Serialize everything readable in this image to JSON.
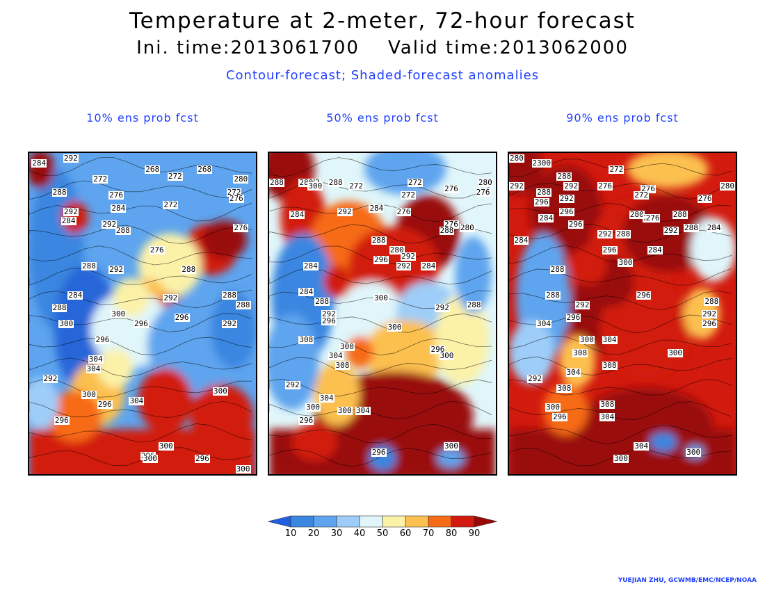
{
  "header": {
    "title": "Temperature at 2-meter, 72-hour forecast",
    "times": "Ini. time:2013061700    Valid time:2013062000",
    "subtitle": "Contour-forecast; Shaded-forecast anomalies"
  },
  "palette": [
    "#2566d8",
    "#3a86e0",
    "#5ea4ee",
    "#9dcdf8",
    "#e0f6fa",
    "#fbf2a8",
    "#fcc050",
    "#f76a18",
    "#d21a0e",
    "#9a0707"
  ],
  "panels": [
    {
      "title": "10% ens prob fcst",
      "base": 2,
      "blobs": [
        [
          0.55,
          0.05,
          0.2,
          0.08,
          2
        ],
        [
          0.12,
          0.3,
          0.12,
          0.25,
          1
        ],
        [
          0.25,
          0.55,
          0.14,
          0.2,
          0
        ],
        [
          0.8,
          0.3,
          0.12,
          0.08,
          8
        ],
        [
          0.86,
          0.27,
          0.1,
          0.06,
          9
        ],
        [
          0.62,
          0.35,
          0.14,
          0.1,
          5
        ],
        [
          0.52,
          0.47,
          0.1,
          0.08,
          6
        ],
        [
          0.62,
          0.5,
          0.08,
          0.06,
          8
        ],
        [
          0.45,
          0.55,
          0.18,
          0.12,
          4
        ],
        [
          0.72,
          0.6,
          0.2,
          0.15,
          2
        ],
        [
          0.6,
          0.77,
          0.12,
          0.1,
          8
        ],
        [
          0.85,
          0.82,
          0.14,
          0.1,
          8
        ],
        [
          0.3,
          0.75,
          0.12,
          0.1,
          6
        ],
        [
          0.2,
          0.82,
          0.12,
          0.08,
          7
        ],
        [
          0.05,
          0.05,
          0.06,
          0.06,
          9
        ],
        [
          0.2,
          0.2,
          0.06,
          0.05,
          8
        ],
        [
          0.45,
          0.45,
          0.08,
          0.06,
          5
        ],
        [
          0.38,
          0.67,
          0.08,
          0.06,
          5
        ],
        [
          0.9,
          0.55,
          0.1,
          0.12,
          1
        ],
        [
          0.05,
          0.78,
          0.08,
          0.08,
          3
        ]
      ],
      "bottom_band": 8,
      "labels": [
        [
          "292",
          0.15,
          0.005
        ],
        [
          "284",
          0.01,
          0.02
        ],
        [
          "272",
          0.28,
          0.07
        ],
        [
          "268",
          0.51,
          0.04
        ],
        [
          "272",
          0.61,
          0.06
        ],
        [
          "268",
          0.74,
          0.04
        ],
        [
          "280",
          0.9,
          0.07
        ],
        [
          "272",
          0.87,
          0.11
        ],
        [
          "276",
          0.88,
          0.13
        ],
        [
          "276",
          0.35,
          0.12
        ],
        [
          "284",
          0.36,
          0.16
        ],
        [
          "272",
          0.59,
          0.15
        ],
        [
          "288",
          0.1,
          0.11
        ],
        [
          "292",
          0.15,
          0.17
        ],
        [
          "284",
          0.14,
          0.2
        ],
        [
          "292",
          0.32,
          0.21
        ],
        [
          "288",
          0.38,
          0.23
        ],
        [
          "276",
          0.9,
          0.22
        ],
        [
          "276",
          0.53,
          0.29
        ],
        [
          "288",
          0.23,
          0.34
        ],
        [
          "292",
          0.35,
          0.35
        ],
        [
          "288",
          0.67,
          0.35
        ],
        [
          "292",
          0.59,
          0.44
        ],
        [
          "288",
          0.85,
          0.43
        ],
        [
          "288",
          0.91,
          0.46
        ],
        [
          "284",
          0.17,
          0.43
        ],
        [
          "288",
          0.1,
          0.47
        ],
        [
          "300",
          0.36,
          0.49
        ],
        [
          "296",
          0.46,
          0.52
        ],
        [
          "296",
          0.64,
          0.5
        ],
        [
          "292",
          0.85,
          0.52
        ],
        [
          "300",
          0.13,
          0.52
        ],
        [
          "296",
          0.29,
          0.57
        ],
        [
          "304",
          0.26,
          0.63
        ],
        [
          "304",
          0.25,
          0.66
        ],
        [
          "292",
          0.06,
          0.69
        ],
        [
          "300",
          0.23,
          0.74
        ],
        [
          "296",
          0.3,
          0.77
        ],
        [
          "304",
          0.44,
          0.76
        ],
        [
          "300",
          0.81,
          0.73
        ],
        [
          "296",
          0.11,
          0.82
        ],
        [
          "300",
          0.57,
          0.9
        ],
        [
          "296",
          0.49,
          0.93
        ],
        [
          "300",
          0.5,
          0.94
        ],
        [
          "296",
          0.73,
          0.94
        ],
        [
          "300",
          0.91,
          0.99
        ]
      ]
    },
    {
      "title": "50% ens prob fcst",
      "base": 4,
      "blobs": [
        [
          0.08,
          0.05,
          0.12,
          0.1,
          9
        ],
        [
          0.15,
          0.2,
          0.1,
          0.12,
          8
        ],
        [
          0.35,
          0.3,
          0.18,
          0.15,
          7
        ],
        [
          0.7,
          0.25,
          0.14,
          0.12,
          9
        ],
        [
          0.55,
          0.35,
          0.2,
          0.12,
          8
        ],
        [
          0.6,
          0.05,
          0.18,
          0.08,
          2
        ],
        [
          0.45,
          0.5,
          0.14,
          0.1,
          4
        ],
        [
          0.7,
          0.5,
          0.14,
          0.1,
          3
        ],
        [
          0.15,
          0.45,
          0.14,
          0.2,
          1
        ],
        [
          0.1,
          0.65,
          0.12,
          0.15,
          2
        ],
        [
          0.6,
          0.62,
          0.18,
          0.1,
          6
        ],
        [
          0.85,
          0.58,
          0.12,
          0.14,
          5
        ],
        [
          0.55,
          0.82,
          0.35,
          0.14,
          9
        ],
        [
          0.3,
          0.75,
          0.1,
          0.1,
          6
        ],
        [
          0.9,
          0.38,
          0.08,
          0.12,
          2
        ],
        [
          0.2,
          0.9,
          0.1,
          0.06,
          8
        ],
        [
          0.5,
          0.95,
          0.06,
          0.04,
          1
        ],
        [
          0.8,
          0.95,
          0.06,
          0.03,
          2
        ],
        [
          0.4,
          0.62,
          0.06,
          0.05,
          7
        ],
        [
          0.3,
          0.4,
          0.06,
          0.05,
          8
        ]
      ],
      "bottom_band": 9,
      "labels": [
        [
          "288",
          0.0,
          0.08
        ],
        [
          "272",
          0.16,
          0.08
        ],
        [
          "280",
          0.13,
          0.08
        ],
        [
          "300",
          0.17,
          0.09
        ],
        [
          "288",
          0.26,
          0.08
        ],
        [
          "272",
          0.35,
          0.09
        ],
        [
          "272",
          0.58,
          0.12
        ],
        [
          "272",
          0.61,
          0.08
        ],
        [
          "276",
          0.77,
          0.1
        ],
        [
          "280",
          0.92,
          0.08
        ],
        [
          "276",
          0.91,
          0.11
        ],
        [
          "284",
          0.09,
          0.18
        ],
        [
          "292",
          0.3,
          0.17
        ],
        [
          "284",
          0.44,
          0.16
        ],
        [
          "276",
          0.56,
          0.17
        ],
        [
          "276",
          0.77,
          0.21
        ],
        [
          "288",
          0.75,
          0.23
        ],
        [
          "280",
          0.84,
          0.22
        ],
        [
          "288",
          0.45,
          0.26
        ],
        [
          "280",
          0.53,
          0.29
        ],
        [
          "296",
          0.46,
          0.32
        ],
        [
          "292",
          0.58,
          0.31
        ],
        [
          "292",
          0.56,
          0.34
        ],
        [
          "284",
          0.67,
          0.34
        ],
        [
          "284",
          0.15,
          0.34
        ],
        [
          "284",
          0.13,
          0.42
        ],
        [
          "288",
          0.2,
          0.45
        ],
        [
          "300",
          0.46,
          0.44
        ],
        [
          "292",
          0.73,
          0.47
        ],
        [
          "288",
          0.87,
          0.46
        ],
        [
          "292",
          0.23,
          0.49
        ],
        [
          "296",
          0.23,
          0.51
        ],
        [
          "300",
          0.52,
          0.53
        ],
        [
          "308",
          0.13,
          0.57
        ],
        [
          "300",
          0.31,
          0.59
        ],
        [
          "304",
          0.26,
          0.62
        ],
        [
          "296",
          0.71,
          0.6
        ],
        [
          "300",
          0.75,
          0.62
        ],
        [
          "308",
          0.29,
          0.65
        ],
        [
          "292",
          0.07,
          0.71
        ],
        [
          "304",
          0.22,
          0.75
        ],
        [
          "300",
          0.16,
          0.78
        ],
        [
          "300",
          0.3,
          0.79
        ],
        [
          "304",
          0.38,
          0.79
        ],
        [
          "296",
          0.13,
          0.82
        ],
        [
          "296",
          0.45,
          0.92
        ],
        [
          "300",
          0.77,
          0.9
        ]
      ]
    },
    {
      "title": "90% ens prob fcst",
      "base": 8,
      "blobs": [
        [
          0.05,
          0.05,
          0.1,
          0.08,
          9
        ],
        [
          0.25,
          0.18,
          0.16,
          0.14,
          9
        ],
        [
          0.55,
          0.3,
          0.2,
          0.15,
          8
        ],
        [
          0.7,
          0.25,
          0.2,
          0.12,
          9
        ],
        [
          0.4,
          0.5,
          0.15,
          0.12,
          9
        ],
        [
          0.6,
          0.55,
          0.2,
          0.15,
          8
        ],
        [
          0.15,
          0.45,
          0.12,
          0.2,
          2
        ],
        [
          0.1,
          0.62,
          0.1,
          0.1,
          3
        ],
        [
          0.3,
          0.65,
          0.08,
          0.08,
          6
        ],
        [
          0.9,
          0.3,
          0.1,
          0.1,
          4
        ],
        [
          0.85,
          0.5,
          0.08,
          0.08,
          6
        ],
        [
          0.7,
          0.05,
          0.18,
          0.06,
          6
        ],
        [
          0.6,
          0.85,
          0.3,
          0.12,
          9
        ],
        [
          0.68,
          0.9,
          0.06,
          0.03,
          1
        ],
        [
          0.82,
          0.93,
          0.04,
          0.02,
          2
        ],
        [
          0.25,
          0.8,
          0.1,
          0.08,
          7
        ],
        [
          0.45,
          0.4,
          0.1,
          0.08,
          9
        ],
        [
          0.35,
          0.35,
          0.08,
          0.06,
          8
        ]
      ],
      "bottom_band": 9,
      "labels": [
        [
          "280",
          0.0,
          0.005
        ],
        [
          "2",
          0.1,
          0.02
        ],
        [
          "300",
          0.12,
          0.02
        ],
        [
          "288",
          0.21,
          0.06
        ],
        [
          "272",
          0.44,
          0.04
        ],
        [
          "292",
          0.24,
          0.09
        ],
        [
          "276",
          0.39,
          0.09
        ],
        [
          "276",
          0.58,
          0.1
        ],
        [
          "276",
          0.83,
          0.13
        ],
        [
          "280",
          0.93,
          0.09
        ],
        [
          "292",
          0.0,
          0.09
        ],
        [
          "288",
          0.12,
          0.11
        ],
        [
          "296",
          0.11,
          0.14
        ],
        [
          "292",
          0.22,
          0.13
        ],
        [
          "296",
          0.22,
          0.17
        ],
        [
          "284",
          0.13,
          0.19
        ],
        [
          "296",
          0.26,
          0.21
        ],
        [
          "272",
          0.55,
          0.12
        ],
        [
          "280",
          0.53,
          0.18
        ],
        [
          "276",
          0.59,
          0.19
        ],
        [
          "276",
          0.6,
          0.19
        ],
        [
          "288",
          0.72,
          0.18
        ],
        [
          "292",
          0.68,
          0.23
        ],
        [
          "288",
          0.77,
          0.22
        ],
        [
          "284",
          0.87,
          0.22
        ],
        [
          "284",
          0.02,
          0.26
        ],
        [
          "292",
          0.39,
          0.24
        ],
        [
          "288",
          0.47,
          0.24
        ],
        [
          "296",
          0.41,
          0.29
        ],
        [
          "284",
          0.61,
          0.29
        ],
        [
          "300",
          0.48,
          0.33
        ],
        [
          "288",
          0.18,
          0.35
        ],
        [
          "296",
          0.56,
          0.43
        ],
        [
          "288",
          0.16,
          0.43
        ],
        [
          "288",
          0.86,
          0.45
        ],
        [
          "292",
          0.29,
          0.46
        ],
        [
          "296",
          0.25,
          0.5
        ],
        [
          "292",
          0.85,
          0.49
        ],
        [
          "296",
          0.85,
          0.52
        ],
        [
          "304",
          0.12,
          0.52
        ],
        [
          "300",
          0.31,
          0.57
        ],
        [
          "304",
          0.41,
          0.57
        ],
        [
          "308",
          0.28,
          0.61
        ],
        [
          "300",
          0.7,
          0.61
        ],
        [
          "304",
          0.25,
          0.67
        ],
        [
          "292",
          0.08,
          0.69
        ],
        [
          "308",
          0.21,
          0.72
        ],
        [
          "308",
          0.41,
          0.65
        ],
        [
          "300",
          0.16,
          0.78
        ],
        [
          "296",
          0.19,
          0.81
        ],
        [
          "308",
          0.4,
          0.77
        ],
        [
          "304",
          0.4,
          0.81
        ],
        [
          "304",
          0.55,
          0.9
        ],
        [
          "300",
          0.78,
          0.92
        ],
        [
          "300",
          0.46,
          0.94
        ]
      ]
    }
  ],
  "colorbar": {
    "ticks": [
      "10",
      "20",
      "30",
      "40",
      "50",
      "60",
      "70",
      "80",
      "90"
    ],
    "colors": [
      "#1f5fe0",
      "#3a86e0",
      "#5ea4ee",
      "#9dcdf8",
      "#e0f6fa",
      "#fbf2a8",
      "#fcc050",
      "#f76a18",
      "#d21a0e",
      "#9a0707"
    ]
  },
  "credit": "YUEJIAN ZHU, GCWMB/EMC/NCEP/NOAA"
}
